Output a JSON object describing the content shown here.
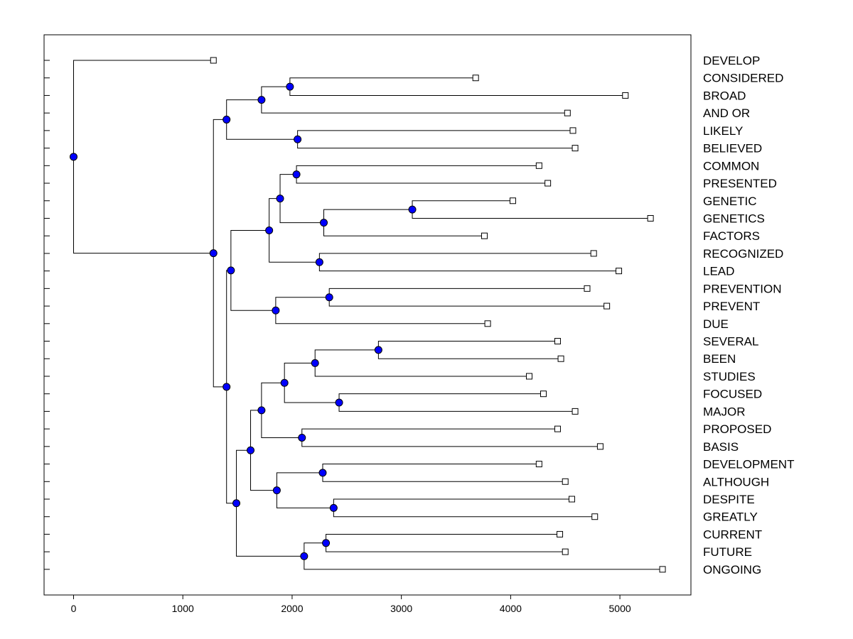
{
  "chart_data": {
    "type": "dendrogram",
    "title": "",
    "xlabel": "",
    "ylabel": "",
    "xlim": [
      -270,
      5650
    ],
    "xticks": [
      0,
      1000,
      2000,
      3000,
      4000,
      5000
    ],
    "xtick_labels": [
      "0",
      "1000",
      "2000",
      "3000",
      "4000",
      "5000"
    ],
    "leaves": [
      {
        "label": "DEVELOP",
        "value": 1280
      },
      {
        "label": "CONSIDERED",
        "value": 3680
      },
      {
        "label": "BROAD",
        "value": 5050
      },
      {
        "label": "AND OR",
        "value": 4520
      },
      {
        "label": "LIKELY",
        "value": 4570
      },
      {
        "label": "BELIEVED",
        "value": 4590
      },
      {
        "label": "COMMON",
        "value": 4260
      },
      {
        "label": "PRESENTED",
        "value": 4340
      },
      {
        "label": "GENETIC",
        "value": 4020
      },
      {
        "label": "GENETICS",
        "value": 5280
      },
      {
        "label": "FACTORS",
        "value": 3760
      },
      {
        "label": "RECOGNIZED",
        "value": 4760
      },
      {
        "label": "LEAD",
        "value": 4990
      },
      {
        "label": "PREVENTION",
        "value": 4700
      },
      {
        "label": "PREVENT",
        "value": 4880
      },
      {
        "label": "DUE",
        "value": 3790
      },
      {
        "label": "SEVERAL",
        "value": 4430
      },
      {
        "label": "BEEN",
        "value": 4460
      },
      {
        "label": "STUDIES",
        "value": 4170
      },
      {
        "label": "FOCUSED",
        "value": 4300
      },
      {
        "label": "MAJOR",
        "value": 4590
      },
      {
        "label": "PROPOSED",
        "value": 4430
      },
      {
        "label": "BASIS",
        "value": 4820
      },
      {
        "label": "DEVELOPMENT",
        "value": 4260
      },
      {
        "label": "ALTHOUGH",
        "value": 4500
      },
      {
        "label": "DESPITE",
        "value": 4560
      },
      {
        "label": "GREATLY",
        "value": 4770
      },
      {
        "label": "CURRENT",
        "value": 4450
      },
      {
        "label": "FUTURE",
        "value": 4500
      },
      {
        "label": "ONGOING",
        "value": 5390
      }
    ],
    "nodes": [
      {
        "id": "n1",
        "value": 1980,
        "children": [
          1,
          2
        ]
      },
      {
        "id": "n2",
        "value": 1720,
        "children": [
          "n1",
          3
        ]
      },
      {
        "id": "n3",
        "value": 2050,
        "children": [
          4,
          5
        ]
      },
      {
        "id": "n4",
        "value": 1400,
        "children": [
          "n2",
          "n3"
        ]
      },
      {
        "id": "n5",
        "value": 2040,
        "children": [
          6,
          7
        ]
      },
      {
        "id": "n6",
        "value": 3100,
        "children": [
          8,
          9
        ]
      },
      {
        "id": "n7",
        "value": 2290,
        "children": [
          "n6",
          10
        ]
      },
      {
        "id": "n8",
        "value": 1890,
        "children": [
          "n5",
          "n7"
        ]
      },
      {
        "id": "n9",
        "value": 2250,
        "children": [
          11,
          12
        ]
      },
      {
        "id": "n10",
        "value": 1790,
        "children": [
          "n8",
          "n9"
        ]
      },
      {
        "id": "n11",
        "value": 2340,
        "children": [
          13,
          14
        ]
      },
      {
        "id": "n12",
        "value": 1850,
        "children": [
          "n11",
          15
        ]
      },
      {
        "id": "n13",
        "value": 1440,
        "children": [
          "n10",
          "n12"
        ]
      },
      {
        "id": "n14",
        "value": 2790,
        "children": [
          16,
          17
        ]
      },
      {
        "id": "n15",
        "value": 2210,
        "children": [
          "n14",
          18
        ]
      },
      {
        "id": "n16",
        "value": 2430,
        "children": [
          19,
          20
        ]
      },
      {
        "id": "n17",
        "value": 1930,
        "children": [
          "n15",
          "n16"
        ]
      },
      {
        "id": "n18",
        "value": 2090,
        "children": [
          21,
          22
        ]
      },
      {
        "id": "n19",
        "value": 1720,
        "children": [
          "n17",
          "n18"
        ]
      },
      {
        "id": "n20",
        "value": 2280,
        "children": [
          23,
          24
        ]
      },
      {
        "id": "n21",
        "value": 2380,
        "children": [
          25,
          26
        ]
      },
      {
        "id": "n22",
        "value": 1860,
        "children": [
          "n20",
          "n21"
        ]
      },
      {
        "id": "n23",
        "value": 1620,
        "children": [
          "n19",
          "n22"
        ]
      },
      {
        "id": "n24",
        "value": 2310,
        "children": [
          27,
          28
        ]
      },
      {
        "id": "n25",
        "value": 2110,
        "children": [
          "n24",
          29
        ]
      },
      {
        "id": "n26",
        "value": 1490,
        "children": [
          "n23",
          "n25"
        ]
      },
      {
        "id": "n27",
        "value": 1400,
        "children": [
          "n13",
          "n26"
        ]
      },
      {
        "id": "n28",
        "value": 1280,
        "children": [
          "n4",
          "n27"
        ]
      },
      {
        "id": "n29",
        "value": 0,
        "children": [
          0,
          "n28"
        ]
      }
    ],
    "grid": false,
    "legend": "none",
    "colors": {
      "node_fill": "#0000ff",
      "leaf_fill": "#ffffff",
      "line": "#000000"
    }
  }
}
